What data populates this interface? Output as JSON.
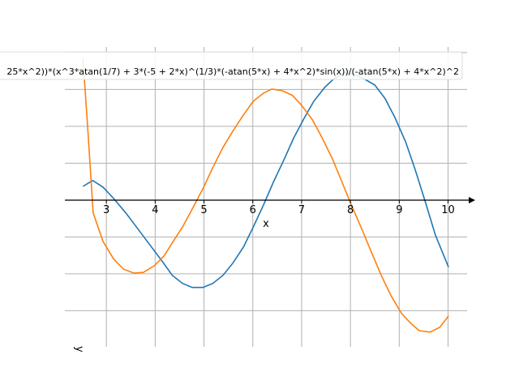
{
  "chart_data": {
    "type": "line",
    "title": "",
    "xlabel": "x",
    "ylabel": "y",
    "xlim": [
      2.15,
      10.39
    ],
    "ylim": [
      -3.98,
      4.15
    ],
    "x_ticks": [
      3,
      4,
      5,
      6,
      7,
      8,
      9,
      10
    ],
    "y_grid": [
      -3,
      -2,
      -1,
      0,
      1,
      2,
      3,
      4
    ],
    "grid": true,
    "legend_placement": "top",
    "legend_text": "25*x^2))*(x^3*atan(1/7) + 3*(-5 + 2*x)^(1/3)*(-atan(5*x) + 4*x^2)*sin(x))/(-atan(5*x) + 4*x^2)^2",
    "series": [
      {
        "name": "blue",
        "color": "#1f77b4",
        "x": [
          2.52,
          2.72,
          2.93,
          3.15,
          3.4,
          3.65,
          3.9,
          4.15,
          4.35,
          4.56,
          4.76,
          4.98,
          5.18,
          5.39,
          5.59,
          5.81,
          6.01,
          6.22,
          6.42,
          6.64,
          6.84,
          7.06,
          7.25,
          7.47,
          7.67,
          7.88,
          8.08,
          8.3,
          8.5,
          8.71,
          8.91,
          9.13,
          9.33,
          9.54,
          9.74,
          10.01
        ],
        "y": [
          0.37,
          0.53,
          0.35,
          0.04,
          -0.35,
          -0.79,
          -1.23,
          -1.67,
          -2.04,
          -2.26,
          -2.37,
          -2.37,
          -2.26,
          -2.04,
          -1.71,
          -1.27,
          -0.73,
          -0.13,
          0.48,
          1.1,
          1.69,
          2.24,
          2.68,
          3.05,
          3.3,
          3.45,
          3.41,
          3.27,
          3.12,
          2.75,
          2.24,
          1.58,
          0.81,
          -0.07,
          -0.95,
          -1.82
        ]
      },
      {
        "name": "orange",
        "color": "#ff7f0e",
        "x": [
          2.52,
          2.62,
          2.73,
          2.93,
          3.15,
          3.35,
          3.56,
          3.76,
          3.98,
          4.18,
          4.35,
          4.56,
          4.76,
          4.98,
          5.18,
          5.39,
          5.59,
          5.81,
          6.01,
          6.22,
          6.39,
          6.59,
          6.81,
          7.0,
          7.22,
          7.42,
          7.63,
          7.83,
          8.0,
          8.25,
          8.42,
          8.63,
          8.83,
          9.05,
          9.25,
          9.41,
          9.63,
          9.83,
          10.01
        ],
        "y": [
          3.85,
          1.91,
          -0.35,
          -1.12,
          -1.6,
          -1.87,
          -1.98,
          -1.96,
          -1.78,
          -1.52,
          -1.16,
          -0.73,
          -0.24,
          0.31,
          0.88,
          1.43,
          1.87,
          2.31,
          2.68,
          2.9,
          3.01,
          2.97,
          2.84,
          2.57,
          2.18,
          1.69,
          1.12,
          0.48,
          -0.07,
          -0.84,
          -1.38,
          -2.04,
          -2.59,
          -3.08,
          -3.36,
          -3.54,
          -3.58,
          -3.45,
          -3.14
        ]
      }
    ]
  }
}
